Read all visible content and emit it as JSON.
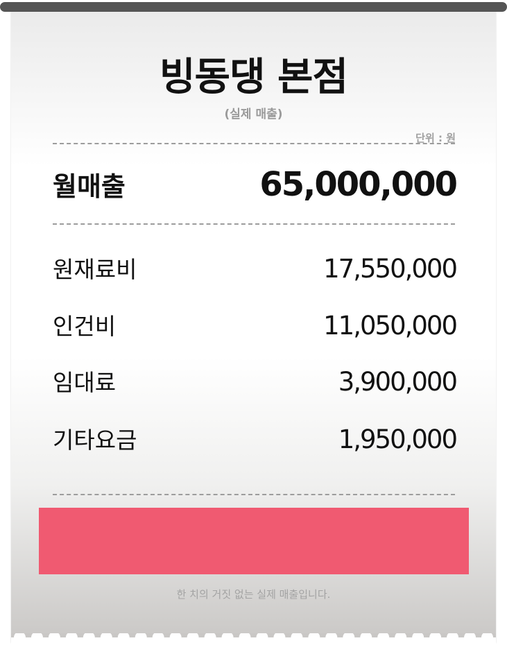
{
  "receipt": {
    "title": "빙동댕 본점",
    "subtitle": "(실제 매출)",
    "unit": "단위 : 원",
    "monthly_sales": {
      "label": "월매출",
      "value": "65,000,000"
    },
    "expenses": [
      {
        "label": "원재료비",
        "value": "17,550,000"
      },
      {
        "label": "인건비",
        "value": "11,050,000"
      },
      {
        "label": "임대료",
        "value": "3,900,000"
      },
      {
        "label": "기타요금",
        "value": "1,950,000"
      }
    ],
    "highlight_color": "#f05a71",
    "footer": "한 치의 거짓 없는 실제 매출입니다."
  }
}
